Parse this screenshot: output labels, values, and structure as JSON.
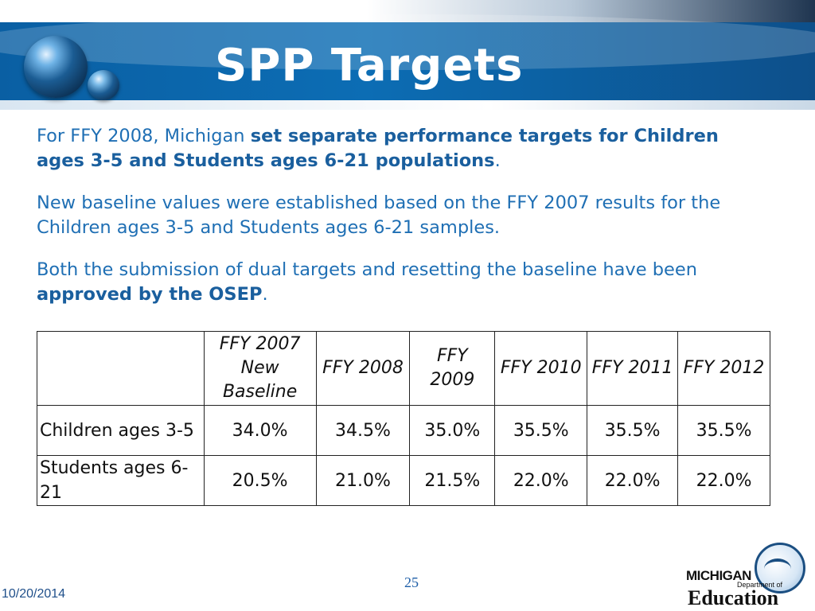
{
  "header": {
    "title": "SPP Targets"
  },
  "body": {
    "p1_a": "For FFY 2008, Michigan ",
    "p1_b": "set separate performance targets for Children ages 3-5 and Students ages 6-21 populations",
    "p1_c": ".",
    "p2": "New baseline values were established based on the FFY 2007 results for the Children ages 3-5 and Students ages 6-21 samples.",
    "p3_a": "Both the submission of dual targets and resetting the baseline have been ",
    "p3_b": "approved by the OSEP",
    "p3_c": "."
  },
  "table": {
    "columns": [
      "",
      "FFY 2007 New Baseline",
      "FFY 2008",
      "FFY 2009",
      "FFY 2010",
      "FFY 2011",
      "FFY 2012"
    ],
    "rows": [
      {
        "label": "Children ages 3-5",
        "values": [
          "34.0%",
          "34.5%",
          "35.0%",
          "35.5%",
          "35.5%",
          "35.5%"
        ]
      },
      {
        "label": "Students ages 6-21",
        "values": [
          "20.5%",
          "21.0%",
          "21.5%",
          "22.0%",
          "22.0%",
          "22.0%"
        ]
      }
    ]
  },
  "footer": {
    "page_number": "25",
    "date": "10/20/2014"
  },
  "logo": {
    "line1": "MICHIGAN",
    "line2": "Department of",
    "line3": "Education"
  },
  "colors": {
    "header_blue": "#0c6db4",
    "text_blue": "#1f6fb4"
  }
}
